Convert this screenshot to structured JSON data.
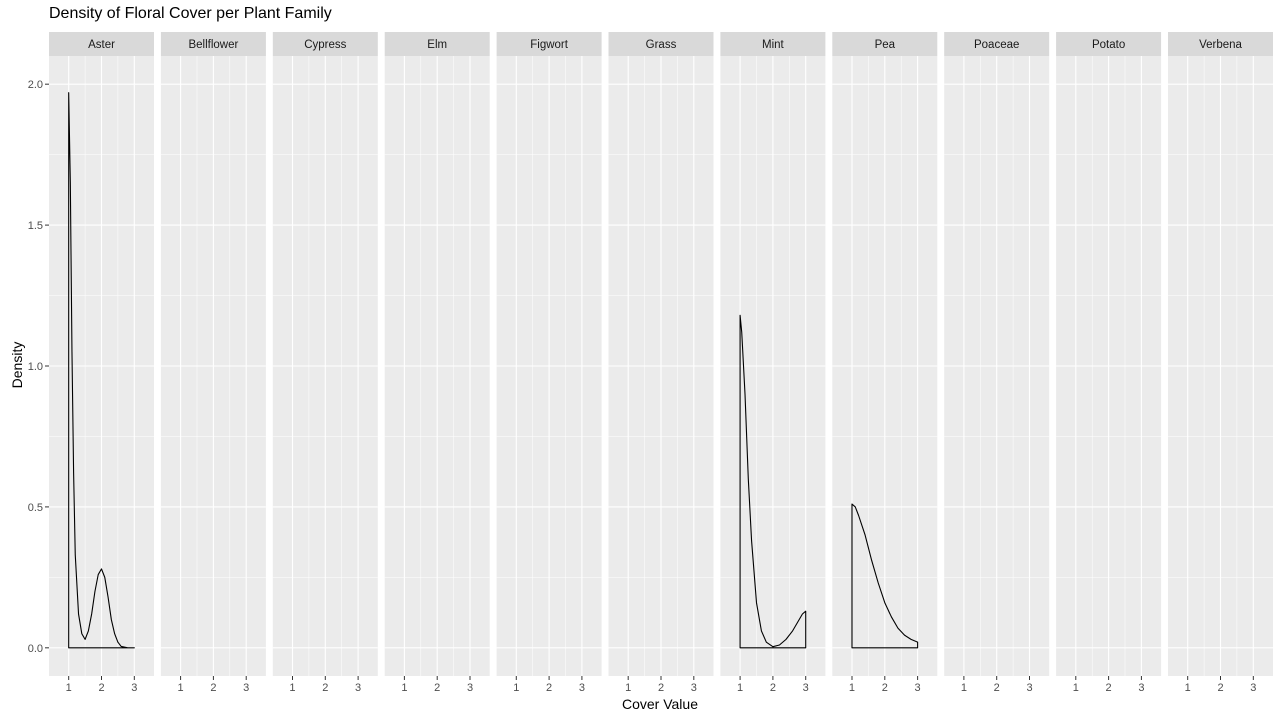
{
  "chart_data": {
    "type": "area",
    "title": "Density of Floral Cover per Plant Family",
    "xlabel": "Cover Value",
    "ylabel": "Density",
    "xlim": [
      0.4,
      3.6
    ],
    "ylim": [
      -0.1,
      2.1
    ],
    "x_ticks": [
      1,
      2,
      3
    ],
    "y_ticks": [
      0.0,
      0.5,
      1.0,
      1.5,
      2.0
    ],
    "y_tick_labels": [
      "0.0",
      "0.5",
      "1.0",
      "1.5",
      "2.0"
    ],
    "facets": [
      "Aster",
      "Bellflower",
      "Cypress",
      "Elm",
      "Figwort",
      "Grass",
      "Mint",
      "Pea",
      "Poaceae",
      "Potato",
      "Verbena"
    ],
    "series": [
      {
        "name": "Aster",
        "points": [
          [
            1.0,
            1.97
          ],
          [
            1.05,
            1.65
          ],
          [
            1.1,
            1.05
          ],
          [
            1.15,
            0.62
          ],
          [
            1.2,
            0.33
          ],
          [
            1.3,
            0.12
          ],
          [
            1.4,
            0.05
          ],
          [
            1.5,
            0.03
          ],
          [
            1.6,
            0.06
          ],
          [
            1.7,
            0.12
          ],
          [
            1.8,
            0.2
          ],
          [
            1.9,
            0.26
          ],
          [
            2.0,
            0.28
          ],
          [
            2.1,
            0.25
          ],
          [
            2.2,
            0.18
          ],
          [
            2.3,
            0.1
          ],
          [
            2.4,
            0.05
          ],
          [
            2.5,
            0.02
          ],
          [
            2.6,
            0.005
          ],
          [
            2.8,
            0.0
          ],
          [
            3.0,
            0.0
          ]
        ]
      },
      {
        "name": "Mint",
        "points": [
          [
            1.0,
            1.18
          ],
          [
            1.05,
            1.12
          ],
          [
            1.15,
            0.9
          ],
          [
            1.25,
            0.6
          ],
          [
            1.35,
            0.38
          ],
          [
            1.5,
            0.16
          ],
          [
            1.65,
            0.06
          ],
          [
            1.8,
            0.02
          ],
          [
            2.0,
            0.004
          ],
          [
            2.2,
            0.01
          ],
          [
            2.4,
            0.03
          ],
          [
            2.6,
            0.06
          ],
          [
            2.8,
            0.1
          ],
          [
            2.9,
            0.12
          ],
          [
            3.0,
            0.13
          ]
        ]
      },
      {
        "name": "Pea",
        "points": [
          [
            1.0,
            0.51
          ],
          [
            1.1,
            0.5
          ],
          [
            1.2,
            0.47
          ],
          [
            1.4,
            0.4
          ],
          [
            1.6,
            0.31
          ],
          [
            1.8,
            0.23
          ],
          [
            2.0,
            0.16
          ],
          [
            2.2,
            0.11
          ],
          [
            2.4,
            0.07
          ],
          [
            2.6,
            0.045
          ],
          [
            2.8,
            0.03
          ],
          [
            3.0,
            0.02
          ]
        ]
      }
    ],
    "grid": true,
    "colors": {
      "panel_bg": "#ebebeb",
      "strip_bg": "#d9d9d9",
      "grid": "#ffffff",
      "line": "#000000",
      "axis_text": "#4d4d4d"
    }
  }
}
